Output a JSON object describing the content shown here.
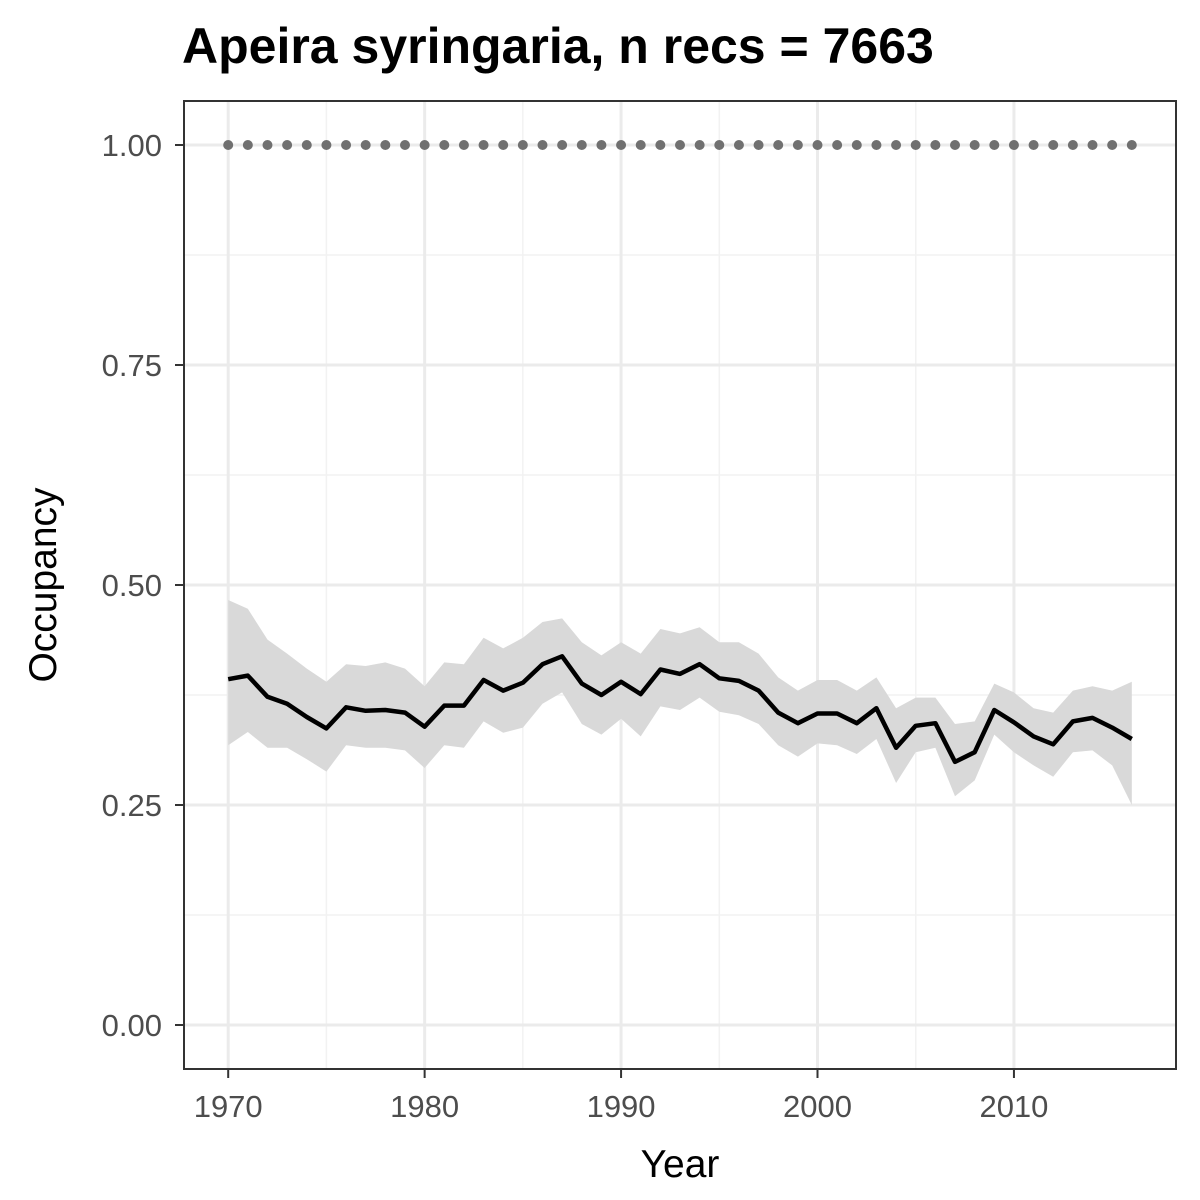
{
  "chart_data": {
    "type": "line",
    "title": "Apeira syringaria, n recs = 7663",
    "xlabel": "Year",
    "ylabel": "Occupancy",
    "xlim": [
      1967.75,
      2018.25
    ],
    "ylim": [
      -0.05,
      1.05
    ],
    "x_ticks": [
      1970,
      1980,
      1990,
      2000,
      2010
    ],
    "x_tick_labels": [
      "1970",
      "1980",
      "1990",
      "2000",
      "2010"
    ],
    "y_ticks": [
      0.0,
      0.25,
      0.5,
      0.75,
      1.0
    ],
    "y_tick_labels": [
      "0.00",
      "0.25",
      "0.50",
      "0.75",
      "1.00"
    ],
    "grid": true,
    "x": [
      1970,
      1971,
      1972,
      1973,
      1974,
      1975,
      1976,
      1977,
      1978,
      1979,
      1980,
      1981,
      1982,
      1983,
      1984,
      1985,
      1986,
      1987,
      1988,
      1989,
      1990,
      1991,
      1992,
      1993,
      1994,
      1995,
      1996,
      1997,
      1998,
      1999,
      2000,
      2001,
      2002,
      2003,
      2004,
      2005,
      2006,
      2007,
      2008,
      2009,
      2010,
      2011,
      2012,
      2013,
      2014,
      2015,
      2016
    ],
    "series": [
      {
        "role": "mean",
        "color": "#000000",
        "values": [
          0.393,
          0.397,
          0.373,
          0.365,
          0.35,
          0.337,
          0.361,
          0.357,
          0.358,
          0.355,
          0.339,
          0.363,
          0.363,
          0.392,
          0.38,
          0.389,
          0.41,
          0.419,
          0.388,
          0.375,
          0.39,
          0.376,
          0.404,
          0.399,
          0.41,
          0.394,
          0.391,
          0.38,
          0.355,
          0.343,
          0.354,
          0.354,
          0.343,
          0.36,
          0.315,
          0.34,
          0.343,
          0.299,
          0.31,
          0.358,
          0.344,
          0.328,
          0.319,
          0.345,
          0.349,
          0.338,
          0.325
        ]
      },
      {
        "role": "ci_upper",
        "color": "#d9d9d9",
        "values": [
          0.483,
          0.473,
          0.438,
          0.422,
          0.405,
          0.39,
          0.41,
          0.408,
          0.412,
          0.405,
          0.385,
          0.412,
          0.41,
          0.44,
          0.428,
          0.44,
          0.458,
          0.462,
          0.435,
          0.42,
          0.435,
          0.422,
          0.45,
          0.445,
          0.452,
          0.435,
          0.435,
          0.422,
          0.395,
          0.38,
          0.392,
          0.392,
          0.38,
          0.395,
          0.36,
          0.372,
          0.372,
          0.342,
          0.345,
          0.388,
          0.378,
          0.36,
          0.355,
          0.38,
          0.385,
          0.38,
          0.39
        ]
      },
      {
        "role": "ci_lower",
        "color": "#d9d9d9",
        "values": [
          0.318,
          0.333,
          0.315,
          0.315,
          0.302,
          0.288,
          0.318,
          0.315,
          0.315,
          0.312,
          0.292,
          0.318,
          0.315,
          0.345,
          0.332,
          0.338,
          0.365,
          0.378,
          0.342,
          0.33,
          0.348,
          0.328,
          0.362,
          0.358,
          0.372,
          0.356,
          0.352,
          0.342,
          0.318,
          0.305,
          0.32,
          0.318,
          0.308,
          0.325,
          0.275,
          0.31,
          0.315,
          0.26,
          0.278,
          0.33,
          0.31,
          0.295,
          0.282,
          0.31,
          0.312,
          0.295,
          0.25
        ]
      },
      {
        "role": "reference",
        "color": "#707070",
        "values": [
          1,
          1,
          1,
          1,
          1,
          1,
          1,
          1,
          1,
          1,
          1,
          1,
          1,
          1,
          1,
          1,
          1,
          1,
          1,
          1,
          1,
          1,
          1,
          1,
          1,
          1,
          1,
          1,
          1,
          1,
          1,
          1,
          1,
          1,
          1,
          1,
          1,
          1,
          1,
          1,
          1,
          1,
          1,
          1,
          1,
          1,
          1
        ]
      }
    ]
  }
}
